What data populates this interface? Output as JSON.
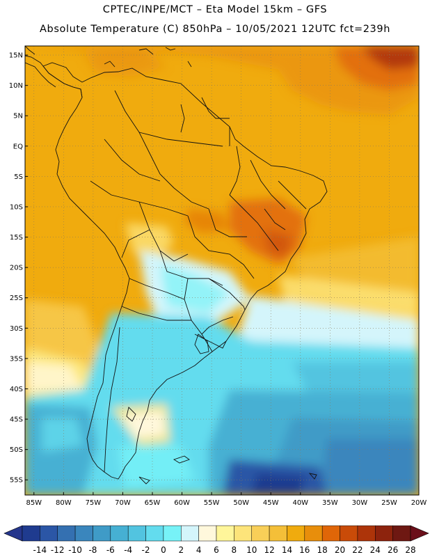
{
  "header": {
    "line1": "CPTEC/INPE/MCT –  Eta Model 15km – GFS",
    "line2": "Absolute Temperature (C) 850hPa – 10/05/2021 12UTC fct=239h"
  },
  "axes": {
    "lat_labels": [
      "15N",
      "10N",
      "5N",
      "EQ",
      "5S",
      "10S",
      "15S",
      "20S",
      "25S",
      "30S",
      "35S",
      "40S",
      "45S",
      "50S",
      "55S"
    ],
    "lat_values": [
      15,
      10,
      5,
      0,
      -5,
      -10,
      -15,
      -20,
      -25,
      -30,
      -35,
      -40,
      -45,
      -50,
      -55
    ],
    "lon_labels": [
      "85W",
      "80W",
      "75W",
      "70W",
      "65W",
      "60W",
      "55W",
      "50W",
      "45W",
      "40W",
      "35W",
      "30W",
      "25W",
      "20W"
    ],
    "lon_values": [
      -85,
      -80,
      -75,
      -70,
      -65,
      -60,
      -55,
      -50,
      -45,
      -40,
      -35,
      -30,
      -25,
      -20
    ],
    "lat_range": [
      -57.5,
      16.5
    ],
    "lon_range": [
      -86.5,
      -20
    ]
  },
  "colorbar": {
    "labels": [
      "-14",
      "-12",
      "-10",
      "-8",
      "-6",
      "-4",
      "-2",
      "0",
      "2",
      "4",
      "6",
      "8",
      "10",
      "12",
      "14",
      "16",
      "18",
      "20",
      "22",
      "24",
      "26",
      "28"
    ],
    "colors": [
      "#1f3b8f",
      "#2b56a6",
      "#3470b1",
      "#3a86bd",
      "#3f9bc7",
      "#46b0d3",
      "#52c4e0",
      "#63dcee",
      "#77f2f7",
      "#d4f5fb",
      "#fff8dc",
      "#fff69a",
      "#fde47a",
      "#f8cf58",
      "#f4bf38",
      "#f0ab0e",
      "#e88e0b",
      "#e06608",
      "#c94b08",
      "#ad3409",
      "#8d230d",
      "#6e1812"
    ],
    "low_end_color": "#25368c",
    "high_end_color": "#6b0f1a"
  },
  "map": {
    "grid": "dotted",
    "ocean_base_color": "#f0ab0e"
  }
}
